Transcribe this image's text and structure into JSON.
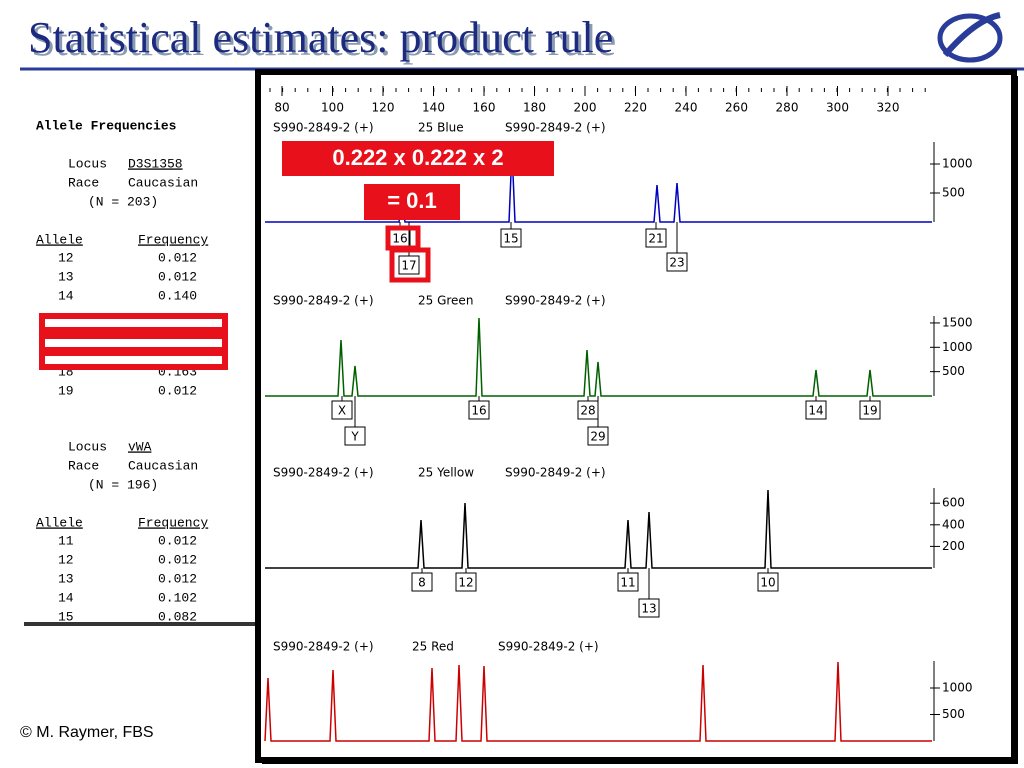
{
  "title": "Statistical estimates: product rule",
  "footer": "© M. Raymer, FBS",
  "allele_table": {
    "heading": "Allele Frequencies",
    "loci": [
      {
        "locus_label": "Locus",
        "locus": "D3S1358",
        "race_label": "Race",
        "race": "Caucasian",
        "n": "(N = 203)",
        "columns": [
          "Allele",
          "Frequency"
        ],
        "rows": [
          [
            "12",
            "0.012"
          ],
          [
            "13",
            "0.012"
          ],
          [
            "14",
            "0.140"
          ],
          [
            "18",
            "0.163"
          ],
          [
            "19",
            "0.012"
          ]
        ]
      },
      {
        "locus_label": "Locus",
        "locus": "vWA",
        "race_label": "Race",
        "race": "Caucasian",
        "n": "(N = 196)",
        "columns": [
          "Allele",
          "Frequency"
        ],
        "rows": [
          [
            "11",
            "0.012"
          ],
          [
            "12",
            "0.012"
          ],
          [
            "13",
            "0.012"
          ],
          [
            "14",
            "0.102"
          ],
          [
            "15",
            "0.082"
          ]
        ]
      }
    ]
  },
  "electropherogram": {
    "xticks": [
      80,
      100,
      120,
      140,
      160,
      180,
      200,
      220,
      240,
      260,
      280,
      300,
      320
    ],
    "panels": [
      {
        "sample": "S990-2849-2 (+)",
        "dye": "25  Blue",
        "sample2": "S990-2849-2 (+)",
        "color": "#0000c0",
        "yticks": [
          1000,
          500
        ],
        "alleles": [
          "16",
          "15",
          "21",
          "17",
          "23"
        ]
      },
      {
        "sample": "S990-2849-2 (+)",
        "dye": "25  Green",
        "sample2": "S990-2849-2 (+)",
        "color": "#006000",
        "yticks": [
          1500,
          1000,
          500
        ],
        "alleles": [
          "X",
          "Y",
          "16",
          "28",
          "29",
          "14",
          "19"
        ]
      },
      {
        "sample": "S990-2849-2 (+)",
        "dye": "25  Yellow",
        "sample2": "S990-2849-2 (+)",
        "color": "#000000",
        "yticks": [
          600,
          400,
          200
        ],
        "alleles": [
          "8",
          "12",
          "11",
          "13",
          "10"
        ]
      },
      {
        "sample": "S990-2849-2 (+)",
        "dye": "25  Red",
        "sample2": "S990-2849-2 (+)",
        "color": "#cc0000",
        "yticks": [
          1000,
          500
        ],
        "alleles": []
      }
    ]
  },
  "annotations": [
    "0.222 x 0.222 x 2",
    "= 0.1"
  ]
}
